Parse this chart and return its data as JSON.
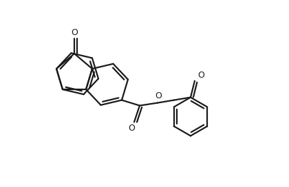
{
  "background_color": "#ffffff",
  "line_color": "#1a1a1a",
  "line_width": 1.6,
  "figsize": [
    4.2,
    2.72
  ],
  "dpi": 100,
  "xlim": [
    0.0,
    4.2
  ],
  "ylim": [
    0.0,
    2.72
  ]
}
